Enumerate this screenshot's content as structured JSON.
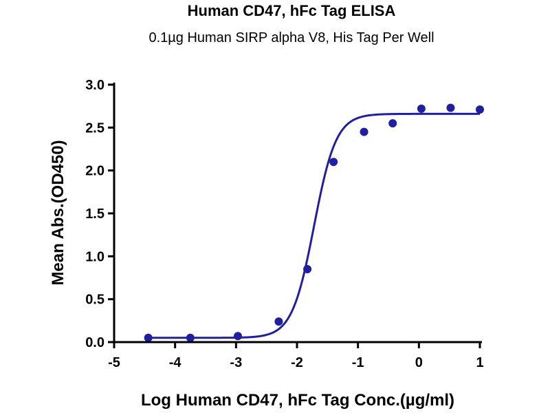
{
  "chart_data": {
    "type": "scatter",
    "title": "Human CD47, hFc Tag ELISA",
    "subtitle": "0.1µg Human SIRP alpha V8, His Tag Per Well",
    "xlabel": "Log Human CD47, hFc Tag Conc.(µg/ml)",
    "ylabel": "Mean Abs.(OD450)",
    "xlim": [
      -5,
      1
    ],
    "ylim": [
      0,
      3
    ],
    "x_ticks": [
      -5,
      -4,
      -3,
      -2,
      -1,
      0,
      1
    ],
    "x_tick_labels": [
      "-5",
      "-4",
      "-3",
      "-2",
      "-1",
      "0",
      "1"
    ],
    "y_ticks": [
      0,
      0.5,
      1,
      1.5,
      2,
      2.5,
      3
    ],
    "y_tick_labels": [
      "0.0",
      "0.5",
      "1.0",
      "1.5",
      "2.0",
      "2.5",
      "3.0"
    ],
    "grid": false,
    "legend": "none",
    "colors": {
      "series": "#1f1fa0",
      "axis": "#000000"
    },
    "series": [
      {
        "points": [
          {
            "x": -4.44,
            "y": 0.05
          },
          {
            "x": -3.75,
            "y": 0.05
          },
          {
            "x": -2.97,
            "y": 0.07
          },
          {
            "x": -2.3,
            "y": 0.24
          },
          {
            "x": -1.83,
            "y": 0.85
          },
          {
            "x": -1.4,
            "y": 2.1
          },
          {
            "x": -0.9,
            "y": 2.45
          },
          {
            "x": -0.43,
            "y": 2.55
          },
          {
            "x": 0.04,
            "y": 2.72
          },
          {
            "x": 0.52,
            "y": 2.73
          },
          {
            "x": 1.0,
            "y": 2.71
          }
        ],
        "fit": {
          "model": "4PL",
          "bottom": 0.05,
          "top": 2.66,
          "log_ec50": -1.72,
          "hill_slope": 2.4
        }
      }
    ]
  }
}
